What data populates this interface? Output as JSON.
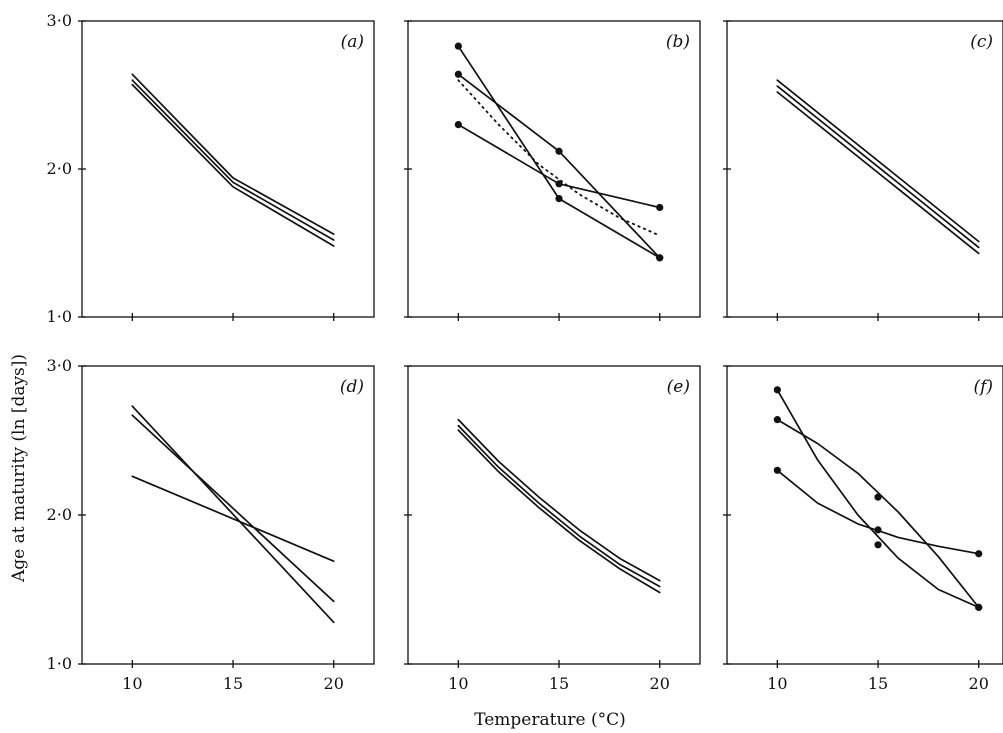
{
  "chart_data": {
    "type": "line",
    "ylabel": "Age at maturity (ln [days])",
    "xlabel": "Temperature (°C)",
    "xlim": [
      7.5,
      22
    ],
    "ylim": [
      1.0,
      3.0
    ],
    "xticks": [
      10,
      15,
      20
    ],
    "xtick_labels": [
      "10",
      "15",
      "20"
    ],
    "yticks": [
      1.0,
      2.0,
      3.0
    ],
    "ytick_labels": [
      "1·0",
      "2·0",
      "3·0"
    ],
    "panels": [
      {
        "label": "(a)",
        "series": [
          {
            "x": [
              10,
              15,
              20
            ],
            "y": [
              2.64,
              1.94,
              1.56
            ],
            "style": "solid",
            "markers": false
          },
          {
            "x": [
              10,
              15,
              20
            ],
            "y": [
              2.6,
              1.91,
              1.52
            ],
            "style": "solid",
            "markers": false
          },
          {
            "x": [
              10,
              15,
              20
            ],
            "y": [
              2.57,
              1.88,
              1.48
            ],
            "style": "solid",
            "markers": false
          }
        ]
      },
      {
        "label": "(b)",
        "series": [
          {
            "x": [
              10,
              15,
              20
            ],
            "y": [
              2.83,
              1.8,
              1.4
            ],
            "style": "solid",
            "markers": true
          },
          {
            "x": [
              10,
              15,
              20
            ],
            "y": [
              2.64,
              2.12,
              1.4
            ],
            "style": "solid",
            "markers": true
          },
          {
            "x": [
              10,
              15,
              20
            ],
            "y": [
              2.3,
              1.9,
              1.74
            ],
            "style": "solid",
            "markers": true
          },
          {
            "x": [
              10,
              12,
              14,
              16,
              18,
              20
            ],
            "y": [
              2.6,
              2.3,
              2.03,
              1.83,
              1.67,
              1.55
            ],
            "style": "dotted",
            "markers": false
          }
        ]
      },
      {
        "label": "(c)",
        "series": [
          {
            "x": [
              10,
              20
            ],
            "y": [
              2.6,
              1.51
            ],
            "style": "solid",
            "markers": false
          },
          {
            "x": [
              10,
              20
            ],
            "y": [
              2.56,
              1.47
            ],
            "style": "solid",
            "markers": false
          },
          {
            "x": [
              10,
              20
            ],
            "y": [
              2.52,
              1.43
            ],
            "style": "solid",
            "markers": false
          }
        ]
      },
      {
        "label": "(d)",
        "series": [
          {
            "x": [
              10,
              20
            ],
            "y": [
              2.73,
              1.28
            ],
            "style": "solid",
            "markers": false
          },
          {
            "x": [
              10,
              20
            ],
            "y": [
              2.67,
              1.42
            ],
            "style": "solid",
            "markers": false
          },
          {
            "x": [
              10,
              20
            ],
            "y": [
              2.26,
              1.69
            ],
            "style": "solid",
            "markers": false
          }
        ]
      },
      {
        "label": "(e)",
        "series": [
          {
            "x": [
              10,
              12,
              14,
              16,
              18,
              20
            ],
            "y": [
              2.64,
              2.36,
              2.12,
              1.9,
              1.71,
              1.56
            ],
            "style": "solid",
            "markers": false
          },
          {
            "x": [
              10,
              12,
              14,
              16,
              18,
              20
            ],
            "y": [
              2.6,
              2.32,
              2.08,
              1.86,
              1.67,
              1.52
            ],
            "style": "solid",
            "markers": false
          },
          {
            "x": [
              10,
              12,
              14,
              16,
              18,
              20
            ],
            "y": [
              2.57,
              2.29,
              2.05,
              1.83,
              1.64,
              1.48
            ],
            "style": "solid",
            "markers": false
          }
        ]
      },
      {
        "label": "(f)",
        "series": [
          {
            "x": [
              10,
              12,
              14,
              16,
              18,
              20
            ],
            "y": [
              2.84,
              2.37,
              2.0,
              1.71,
              1.5,
              1.38
            ],
            "style": "solid",
            "markers": true,
            "marker_x": [
              10,
              15,
              20
            ],
            "marker_y": [
              2.84,
              1.8,
              1.38
            ]
          },
          {
            "x": [
              10,
              12,
              14,
              16,
              18,
              20
            ],
            "y": [
              2.64,
              2.48,
              2.28,
              2.02,
              1.72,
              1.38
            ],
            "style": "solid",
            "markers": true,
            "marker_x": [
              10,
              15,
              20
            ],
            "marker_y": [
              2.64,
              2.12,
              1.38
            ]
          },
          {
            "x": [
              10,
              12,
              14,
              16,
              18,
              20
            ],
            "y": [
              2.3,
              2.08,
              1.94,
              1.85,
              1.79,
              1.74
            ],
            "style": "solid",
            "markers": true,
            "marker_x": [
              10,
              15,
              20
            ],
            "marker_y": [
              2.3,
              1.9,
              1.74
            ]
          }
        ]
      }
    ]
  }
}
